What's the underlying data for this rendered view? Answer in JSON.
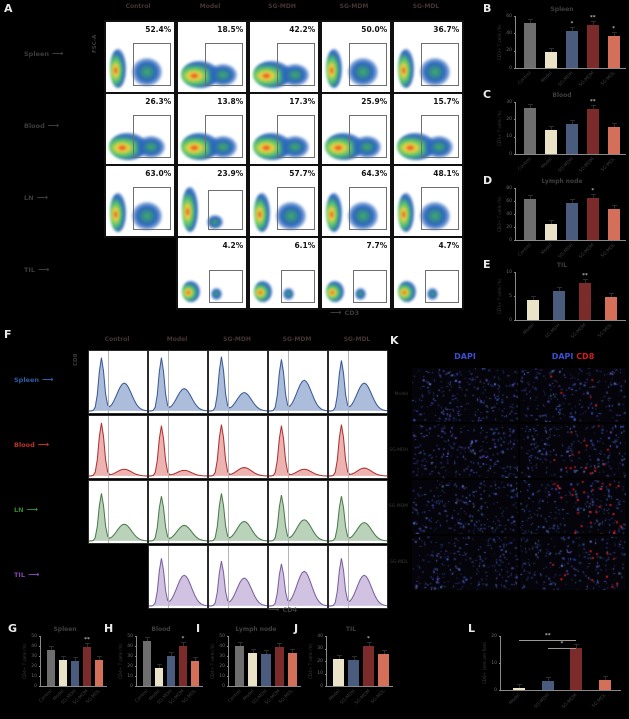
{
  "groups": {
    "full": [
      "Control",
      "Model",
      "SG-MDH",
      "SG-MDM",
      "SG-MDL"
    ],
    "treat4": [
      "Model",
      "SG-MDH",
      "SG-MDM",
      "SG-MDL"
    ]
  },
  "colors": {
    "group_bars": [
      "#6e6e6e",
      "#eae3c8",
      "#4a5c7d",
      "#7c2b2b",
      "#d4705a"
    ],
    "tissue_labels": {
      "spleen": "#2e5fa8",
      "blood": "#c03028",
      "ln": "#2e8b2e",
      "til": "#8644b0"
    },
    "dapi_text": "#3b4fd0",
    "cd8_text": "#d02020"
  },
  "panels": {
    "A": {
      "letter": "A",
      "ylabel": "FSC-A",
      "xlabel": "CD3",
      "rows": [
        {
          "label": "Spleen",
          "start_col": 0,
          "cells": [
            {
              "pct": "52.4%",
              "v": "dual"
            },
            {
              "pct": "18.5%",
              "v": "smear"
            },
            {
              "pct": "42.2%",
              "v": "smear"
            },
            {
              "pct": "50.0%",
              "v": "dual"
            },
            {
              "pct": "36.7%",
              "v": "dual"
            }
          ]
        },
        {
          "label": "Blood",
          "start_col": 0,
          "cells": [
            {
              "pct": "26.3%",
              "v": "smear"
            },
            {
              "pct": "13.8%",
              "v": "smear"
            },
            {
              "pct": "17.3%",
              "v": "smear"
            },
            {
              "pct": "25.9%",
              "v": "smear"
            },
            {
              "pct": "15.7%",
              "v": "smear"
            }
          ]
        },
        {
          "label": "LN",
          "start_col": 0,
          "cells": [
            {
              "pct": "63.0%",
              "v": "dual"
            },
            {
              "pct": "23.9%",
              "v": "left"
            },
            {
              "pct": "57.7%",
              "v": "dual"
            },
            {
              "pct": "64.3%",
              "v": "dual"
            },
            {
              "pct": "48.1%",
              "v": "dual"
            }
          ]
        },
        {
          "label": "TIL",
          "start_col": 1,
          "cells": [
            {
              "pct": "4.2%",
              "v": "small"
            },
            {
              "pct": "6.1%",
              "v": "small"
            },
            {
              "pct": "7.7%",
              "v": "small"
            },
            {
              "pct": "4.7%",
              "v": "small"
            }
          ]
        }
      ]
    },
    "F": {
      "letter": "F",
      "ylabel": "CD8",
      "xlabel": "CD4",
      "rows": [
        {
          "label": "Spleen",
          "color": "#2e5fa8",
          "fill": "#8fa7cf",
          "stroke": "#3a5a96",
          "start_col": 0,
          "peaks": [
            [
              0.95,
              0.5
            ],
            [
              0.95,
              0.4
            ],
            [
              0.97,
              0.33
            ],
            [
              0.92,
              0.55
            ],
            [
              0.9,
              0.5
            ]
          ]
        },
        {
          "label": "Blood",
          "color": "#c03028",
          "fill": "#e59a96",
          "stroke": "#b03030",
          "start_col": 0,
          "peaks": [
            [
              0.95,
              0.12
            ],
            [
              0.9,
              0.1
            ],
            [
              0.92,
              0.15
            ],
            [
              0.9,
              0.12
            ],
            [
              0.92,
              0.14
            ]
          ]
        },
        {
          "label": "LN",
          "color": "#2e8b2e",
          "fill": "#a3c2a3",
          "stroke": "#4a7a4a",
          "start_col": 0,
          "peaks": [
            [
              0.85,
              0.3
            ],
            [
              0.8,
              0.28
            ],
            [
              0.85,
              0.35
            ],
            [
              0.82,
              0.38
            ],
            [
              0.8,
              0.33
            ]
          ]
        },
        {
          "label": "TIL",
          "color": "#8644b0",
          "fill": "#c0aed6",
          "stroke": "#7a5fa0",
          "start_col": 1,
          "peaks": [
            [
              0.85,
              0.55
            ],
            [
              0.8,
              0.5
            ],
            [
              0.75,
              0.62
            ],
            [
              0.85,
              0.55
            ]
          ]
        }
      ]
    },
    "K": {
      "letter": "K",
      "col1": "DAPI",
      "col2a": "DAPI",
      "col2b": "CD8",
      "row_labels": [
        "Model",
        "SG-MDH",
        "SG-MDM",
        "SG-MDL"
      ],
      "tiles": [
        [
          {
            "blue": 260,
            "red": 0
          },
          {
            "blue": 225,
            "red": 5
          }
        ],
        [
          {
            "blue": 255,
            "red": 0
          },
          {
            "blue": 220,
            "red": 16
          }
        ],
        [
          {
            "blue": 250,
            "red": 0
          },
          {
            "blue": 225,
            "red": 28
          }
        ],
        [
          {
            "blue": 235,
            "red": 0
          },
          {
            "blue": 215,
            "red": 12
          }
        ]
      ]
    }
  },
  "chart_data": [
    {
      "id": "B",
      "letter": "B",
      "type": "bar",
      "title": "Spleen",
      "ylabel": "CD3+ T cells (%)",
      "group_set": "full",
      "values": [
        52.4,
        18.5,
        42.2,
        50.0,
        36.7
      ],
      "sig": [
        "",
        "",
        "*",
        "**",
        "*"
      ],
      "ylim": 60,
      "yticks": [
        0,
        20,
        40,
        60
      ]
    },
    {
      "id": "C",
      "letter": "C",
      "type": "bar",
      "title": "Blood",
      "ylabel": "CD3+ T cells (%)",
      "group_set": "full",
      "values": [
        26.3,
        13.8,
        17.3,
        25.9,
        15.7
      ],
      "sig": [
        "",
        "",
        "",
        "**",
        ""
      ],
      "ylim": 30,
      "yticks": [
        0,
        10,
        20,
        30
      ]
    },
    {
      "id": "D",
      "letter": "D",
      "type": "bar",
      "title": "Lymph node",
      "ylabel": "CD3+ T cells (%)",
      "group_set": "full",
      "values": [
        63.0,
        23.9,
        57.7,
        64.3,
        48.1
      ],
      "sig": [
        "",
        "",
        "",
        "*",
        ""
      ],
      "ylim": 80,
      "yticks": [
        0,
        20,
        40,
        60,
        80
      ]
    },
    {
      "id": "E",
      "letter": "E",
      "type": "bar",
      "title": "TIL",
      "ylabel": "CD3+ T cells (%)",
      "group_set": "treat4",
      "values": [
        4.2,
        6.1,
        7.7,
        4.7
      ],
      "sig": [
        "",
        "",
        "**",
        ""
      ],
      "ylim": 10,
      "yticks": [
        0,
        5,
        10
      ]
    },
    {
      "id": "G",
      "letter": "G",
      "type": "bar",
      "title": "Spleen",
      "ylabel": "CD4+ T cells (%)",
      "group_set": "full",
      "values": [
        36,
        26,
        25,
        39,
        26
      ],
      "sig": [
        "",
        "",
        "",
        "**",
        ""
      ],
      "ylim": 50,
      "yticks": [
        0,
        10,
        20,
        30,
        40,
        50
      ]
    },
    {
      "id": "H",
      "letter": "H",
      "type": "bar",
      "title": "Blood",
      "ylabel": "CD4+ T cells (%)",
      "group_set": "full",
      "values": [
        45,
        18,
        30,
        40,
        25
      ],
      "sig": [
        "",
        "",
        "",
        "*",
        ""
      ],
      "ylim": 50,
      "yticks": [
        0,
        10,
        20,
        30,
        40,
        50
      ]
    },
    {
      "id": "I",
      "letter": "I",
      "type": "bar",
      "title": "Lymph node",
      "ylabel": "CD4+ T cells (%)",
      "group_set": "full",
      "values": [
        40,
        33,
        32,
        39,
        33
      ],
      "sig": [
        "",
        "",
        "",
        "",
        ""
      ],
      "ylim": 50,
      "yticks": [
        0,
        10,
        20,
        30,
        40,
        50
      ]
    },
    {
      "id": "J",
      "letter": "J",
      "type": "bar",
      "title": "TIL",
      "ylabel": "CD4+ T cells (%)",
      "group_set": "treat4",
      "values": [
        22,
        21,
        32,
        26
      ],
      "sig": [
        "",
        "",
        "*",
        ""
      ],
      "ylim": 40,
      "yticks": [
        0,
        10,
        20,
        30,
        40
      ]
    },
    {
      "id": "L",
      "letter": "L",
      "type": "bar",
      "title": "",
      "ylabel": "CD8+ cells per field",
      "group_set": "treat4",
      "values": [
        0.8,
        3.2,
        15.5,
        3.6
      ],
      "sig": [
        "",
        "",
        "",
        ""
      ],
      "ylim": 20,
      "yticks": [
        0,
        10,
        20
      ],
      "brackets": [
        {
          "from": 0,
          "to": 2,
          "label": "**"
        },
        {
          "from": 1,
          "to": 2,
          "label": "*"
        }
      ]
    }
  ]
}
